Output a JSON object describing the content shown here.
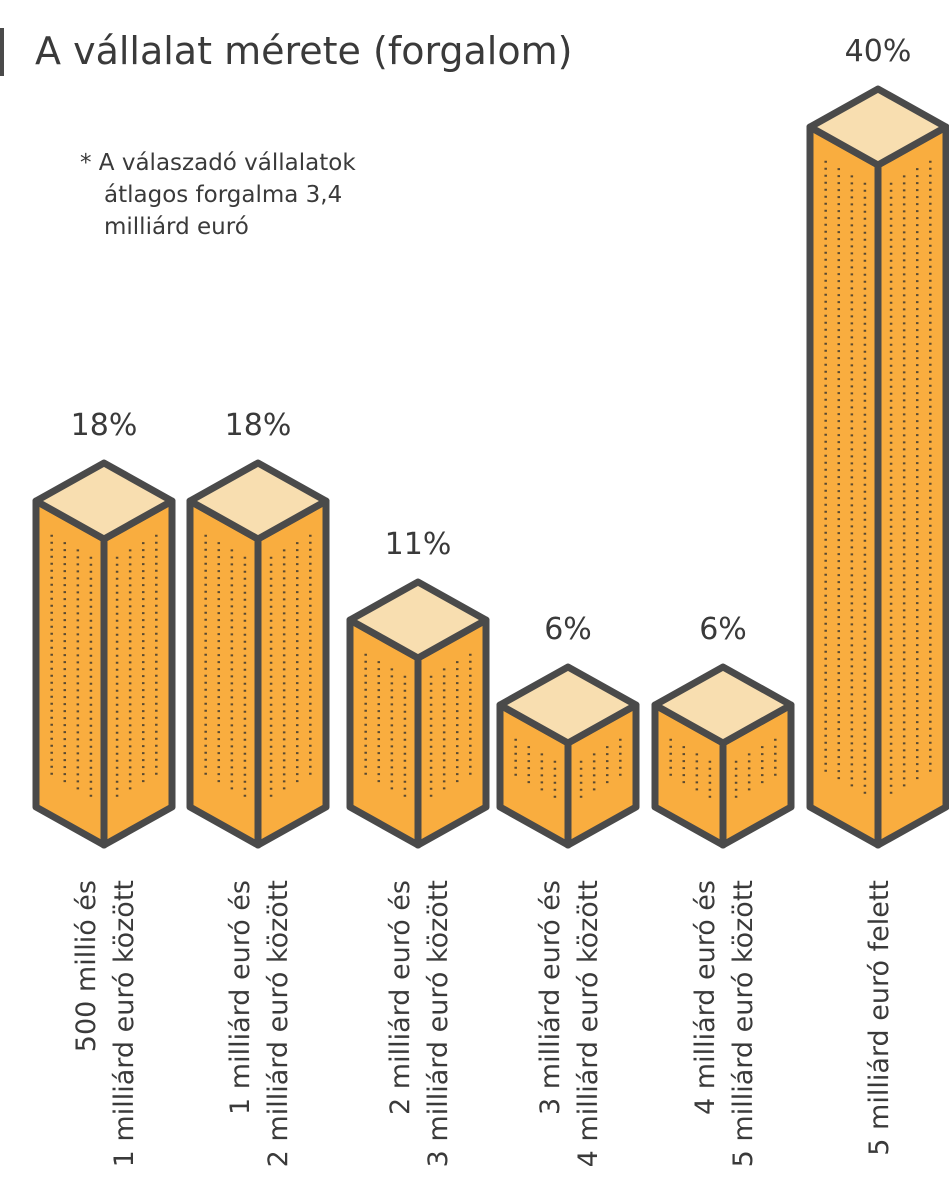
{
  "chart_data": {
    "type": "bar",
    "title": "A vállalat mérete (forgalom)",
    "note": [
      "* A válaszadó vállalatok",
      "átlagos forgalma 3,4",
      "milliárd euró"
    ],
    "categories": [
      [
        "500 millió és",
        "1 milliárd euró között"
      ],
      [
        "1 milliárd euró és",
        "2 milliárd euró között"
      ],
      [
        "2 milliárd euró és",
        "3 milliárd euró között"
      ],
      [
        "3 milliárd euró és",
        "4 milliárd euró között"
      ],
      [
        "4 milliárd euró és",
        "5 milliárd euró között"
      ],
      [
        "5 milliárd euró felett"
      ]
    ],
    "values": [
      18,
      18,
      11,
      6,
      6,
      40
    ],
    "value_labels": [
      "18%",
      "18%",
      "11%",
      "6%",
      "6%",
      "40%"
    ],
    "color": "#f9ad3f",
    "top_color": "#f8deb0",
    "outline_color": "#4a4a4a",
    "ylim": [
      0,
      40
    ]
  }
}
